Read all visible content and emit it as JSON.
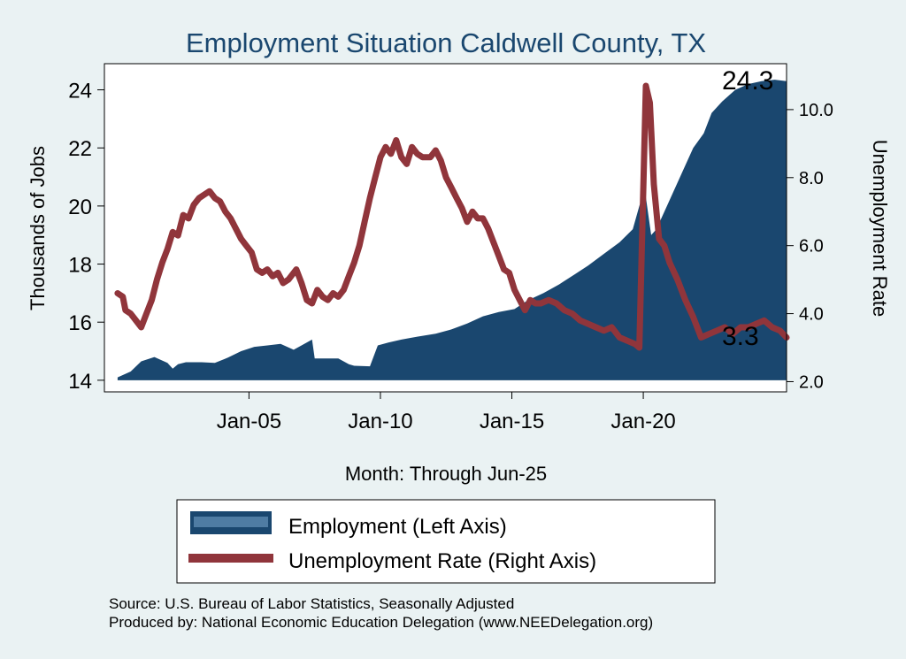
{
  "chart_data": {
    "type": "area+line",
    "title": "Employment Situation Caldwell  County, TX",
    "xlabel": "Month: Through Jun-25",
    "ylabel_left": "Thousands of Jobs",
    "ylabel_right": "Unemployment Rate",
    "x_ticks": [
      "Jan-05",
      "Jan-10",
      "Jan-15",
      "Jan-20"
    ],
    "x_tick_values": [
      2005,
      2010,
      2015,
      2020
    ],
    "y_left_ticks": [
      "14",
      "16",
      "18",
      "20",
      "22",
      "24"
    ],
    "y_left_tick_values": [
      14,
      16,
      18,
      20,
      22,
      24
    ],
    "y_right_ticks": [
      "2.0",
      "4.0",
      "6.0",
      "8.0",
      "10.0"
    ],
    "y_right_tick_values": [
      2,
      4,
      6,
      8,
      10
    ],
    "xlim": [
      1999.5,
      2025.45
    ],
    "ylim_left": [
      13.6,
      24.9
    ],
    "ylim_right": [
      1.7,
      11.35
    ],
    "end_label_employment": "24.3",
    "end_label_unemployment": "3.3",
    "series": [
      {
        "name": "Employment (Left Axis)",
        "axis": "left",
        "style": "area",
        "color": "#1a476f",
        "points": [
          [
            2000.0,
            14.1
          ],
          [
            2000.5,
            14.3
          ],
          [
            2000.9,
            14.65
          ],
          [
            2001.4,
            14.8
          ],
          [
            2001.9,
            14.6
          ],
          [
            2002.1,
            14.4
          ],
          [
            2002.3,
            14.55
          ],
          [
            2002.6,
            14.62
          ],
          [
            2003.2,
            14.62
          ],
          [
            2003.7,
            14.6
          ],
          [
            2004.2,
            14.78
          ],
          [
            2004.7,
            15.0
          ],
          [
            2005.2,
            15.15
          ],
          [
            2005.7,
            15.2
          ],
          [
            2006.2,
            15.25
          ],
          [
            2006.7,
            15.05
          ],
          [
            2007.0,
            15.2
          ],
          [
            2007.4,
            15.4
          ],
          [
            2007.5,
            14.75
          ],
          [
            2008.4,
            14.75
          ],
          [
            2008.8,
            14.55
          ],
          [
            2009.0,
            14.5
          ],
          [
            2009.6,
            14.48
          ],
          [
            2009.9,
            15.2
          ],
          [
            2010.3,
            15.3
          ],
          [
            2010.8,
            15.4
          ],
          [
            2011.4,
            15.5
          ],
          [
            2012.1,
            15.6
          ],
          [
            2012.7,
            15.75
          ],
          [
            2013.3,
            15.95
          ],
          [
            2013.9,
            16.2
          ],
          [
            2014.5,
            16.35
          ],
          [
            2015.1,
            16.45
          ],
          [
            2015.6,
            16.75
          ],
          [
            2016.2,
            17.0
          ],
          [
            2016.8,
            17.3
          ],
          [
            2017.4,
            17.65
          ],
          [
            2017.9,
            17.95
          ],
          [
            2018.5,
            18.35
          ],
          [
            2019.1,
            18.75
          ],
          [
            2019.6,
            19.2
          ],
          [
            2019.85,
            20.0
          ],
          [
            2020.05,
            20.6
          ],
          [
            2020.3,
            19.0
          ],
          [
            2020.5,
            19.2
          ],
          [
            2021.0,
            20.2
          ],
          [
            2021.5,
            21.2
          ],
          [
            2021.9,
            22.0
          ],
          [
            2022.3,
            22.5
          ],
          [
            2022.6,
            23.2
          ],
          [
            2023.0,
            23.6
          ],
          [
            2023.5,
            24.0
          ],
          [
            2024.0,
            24.2
          ],
          [
            2024.5,
            24.3
          ],
          [
            2025.0,
            24.35
          ],
          [
            2025.45,
            24.3
          ]
        ]
      },
      {
        "name": "Unemployment Rate (Right Axis)",
        "axis": "right",
        "style": "line",
        "color": "#90353b",
        "points": [
          [
            2000.0,
            4.6
          ],
          [
            2000.2,
            4.5
          ],
          [
            2000.3,
            4.1
          ],
          [
            2000.5,
            4.0
          ],
          [
            2000.7,
            3.8
          ],
          [
            2000.9,
            3.6
          ],
          [
            2001.1,
            4.0
          ],
          [
            2001.3,
            4.4
          ],
          [
            2001.5,
            5.0
          ],
          [
            2001.7,
            5.5
          ],
          [
            2001.9,
            5.9
          ],
          [
            2002.1,
            6.4
          ],
          [
            2002.3,
            6.3
          ],
          [
            2002.5,
            6.9
          ],
          [
            2002.7,
            6.8
          ],
          [
            2002.9,
            7.2
          ],
          [
            2003.1,
            7.4
          ],
          [
            2003.3,
            7.5
          ],
          [
            2003.5,
            7.6
          ],
          [
            2003.7,
            7.4
          ],
          [
            2003.9,
            7.3
          ],
          [
            2004.1,
            7.0
          ],
          [
            2004.3,
            6.8
          ],
          [
            2004.5,
            6.5
          ],
          [
            2004.7,
            6.2
          ],
          [
            2004.9,
            6.0
          ],
          [
            2005.1,
            5.8
          ],
          [
            2005.3,
            5.3
          ],
          [
            2005.5,
            5.2
          ],
          [
            2005.7,
            5.3
          ],
          [
            2005.9,
            5.1
          ],
          [
            2006.1,
            5.2
          ],
          [
            2006.3,
            4.9
          ],
          [
            2006.5,
            5.0
          ],
          [
            2006.8,
            5.3
          ],
          [
            2007.0,
            4.9
          ],
          [
            2007.2,
            4.4
          ],
          [
            2007.4,
            4.3
          ],
          [
            2007.6,
            4.7
          ],
          [
            2007.8,
            4.5
          ],
          [
            2008.0,
            4.4
          ],
          [
            2008.2,
            4.6
          ],
          [
            2008.4,
            4.5
          ],
          [
            2008.6,
            4.7
          ],
          [
            2008.8,
            5.1
          ],
          [
            2009.0,
            5.5
          ],
          [
            2009.2,
            6.0
          ],
          [
            2009.4,
            6.7
          ],
          [
            2009.6,
            7.4
          ],
          [
            2009.8,
            8.0
          ],
          [
            2010.0,
            8.6
          ],
          [
            2010.2,
            8.9
          ],
          [
            2010.4,
            8.7
          ],
          [
            2010.6,
            9.1
          ],
          [
            2010.8,
            8.6
          ],
          [
            2011.0,
            8.4
          ],
          [
            2011.2,
            8.9
          ],
          [
            2011.4,
            8.7
          ],
          [
            2011.6,
            8.6
          ],
          [
            2011.9,
            8.6
          ],
          [
            2012.1,
            8.8
          ],
          [
            2012.3,
            8.5
          ],
          [
            2012.5,
            8.0
          ],
          [
            2012.7,
            7.7
          ],
          [
            2012.9,
            7.4
          ],
          [
            2013.1,
            7.1
          ],
          [
            2013.3,
            6.7
          ],
          [
            2013.5,
            7.0
          ],
          [
            2013.7,
            6.8
          ],
          [
            2013.9,
            6.8
          ],
          [
            2014.1,
            6.5
          ],
          [
            2014.3,
            6.1
          ],
          [
            2014.5,
            5.7
          ],
          [
            2014.7,
            5.3
          ],
          [
            2014.9,
            5.2
          ],
          [
            2015.1,
            4.7
          ],
          [
            2015.3,
            4.4
          ],
          [
            2015.5,
            4.1
          ],
          [
            2015.7,
            4.4
          ],
          [
            2015.9,
            4.3
          ],
          [
            2016.1,
            4.3
          ],
          [
            2016.4,
            4.4
          ],
          [
            2016.7,
            4.3
          ],
          [
            2017.0,
            4.1
          ],
          [
            2017.3,
            4.0
          ],
          [
            2017.6,
            3.8
          ],
          [
            2017.9,
            3.7
          ],
          [
            2018.2,
            3.6
          ],
          [
            2018.5,
            3.5
          ],
          [
            2018.8,
            3.6
          ],
          [
            2019.1,
            3.3
          ],
          [
            2019.4,
            3.2
          ],
          [
            2019.7,
            3.1
          ],
          [
            2019.85,
            3.0
          ],
          [
            2020.1,
            10.7
          ],
          [
            2020.25,
            10.2
          ],
          [
            2020.4,
            7.8
          ],
          [
            2020.6,
            6.2
          ],
          [
            2020.8,
            6.0
          ],
          [
            2021.0,
            5.5
          ],
          [
            2021.3,
            5.0
          ],
          [
            2021.6,
            4.4
          ],
          [
            2021.9,
            3.9
          ],
          [
            2022.2,
            3.3
          ],
          [
            2022.5,
            3.4
          ],
          [
            2022.8,
            3.5
          ],
          [
            2023.1,
            3.6
          ],
          [
            2023.4,
            3.4
          ],
          [
            2023.7,
            3.6
          ],
          [
            2024.0,
            3.6
          ],
          [
            2024.3,
            3.7
          ],
          [
            2024.6,
            3.8
          ],
          [
            2024.9,
            3.6
          ],
          [
            2025.2,
            3.5
          ],
          [
            2025.45,
            3.3
          ]
        ]
      }
    ],
    "legend": {
      "position": "bottom-center",
      "entries": [
        "Employment (Left Axis)",
        "Unemployment Rate (Right Axis)"
      ]
    },
    "source_lines": [
      "Source: U.S. Bureau of Labor Statistics, Seasonally Adjusted",
      "Produced by: National Economic Education Delegation (www.NEEDelegation.org)"
    ],
    "colors": {
      "background": "#eaf2f3",
      "plot_background": "#ffffff",
      "employment": "#1a476f",
      "unemployment": "#90353b"
    }
  }
}
